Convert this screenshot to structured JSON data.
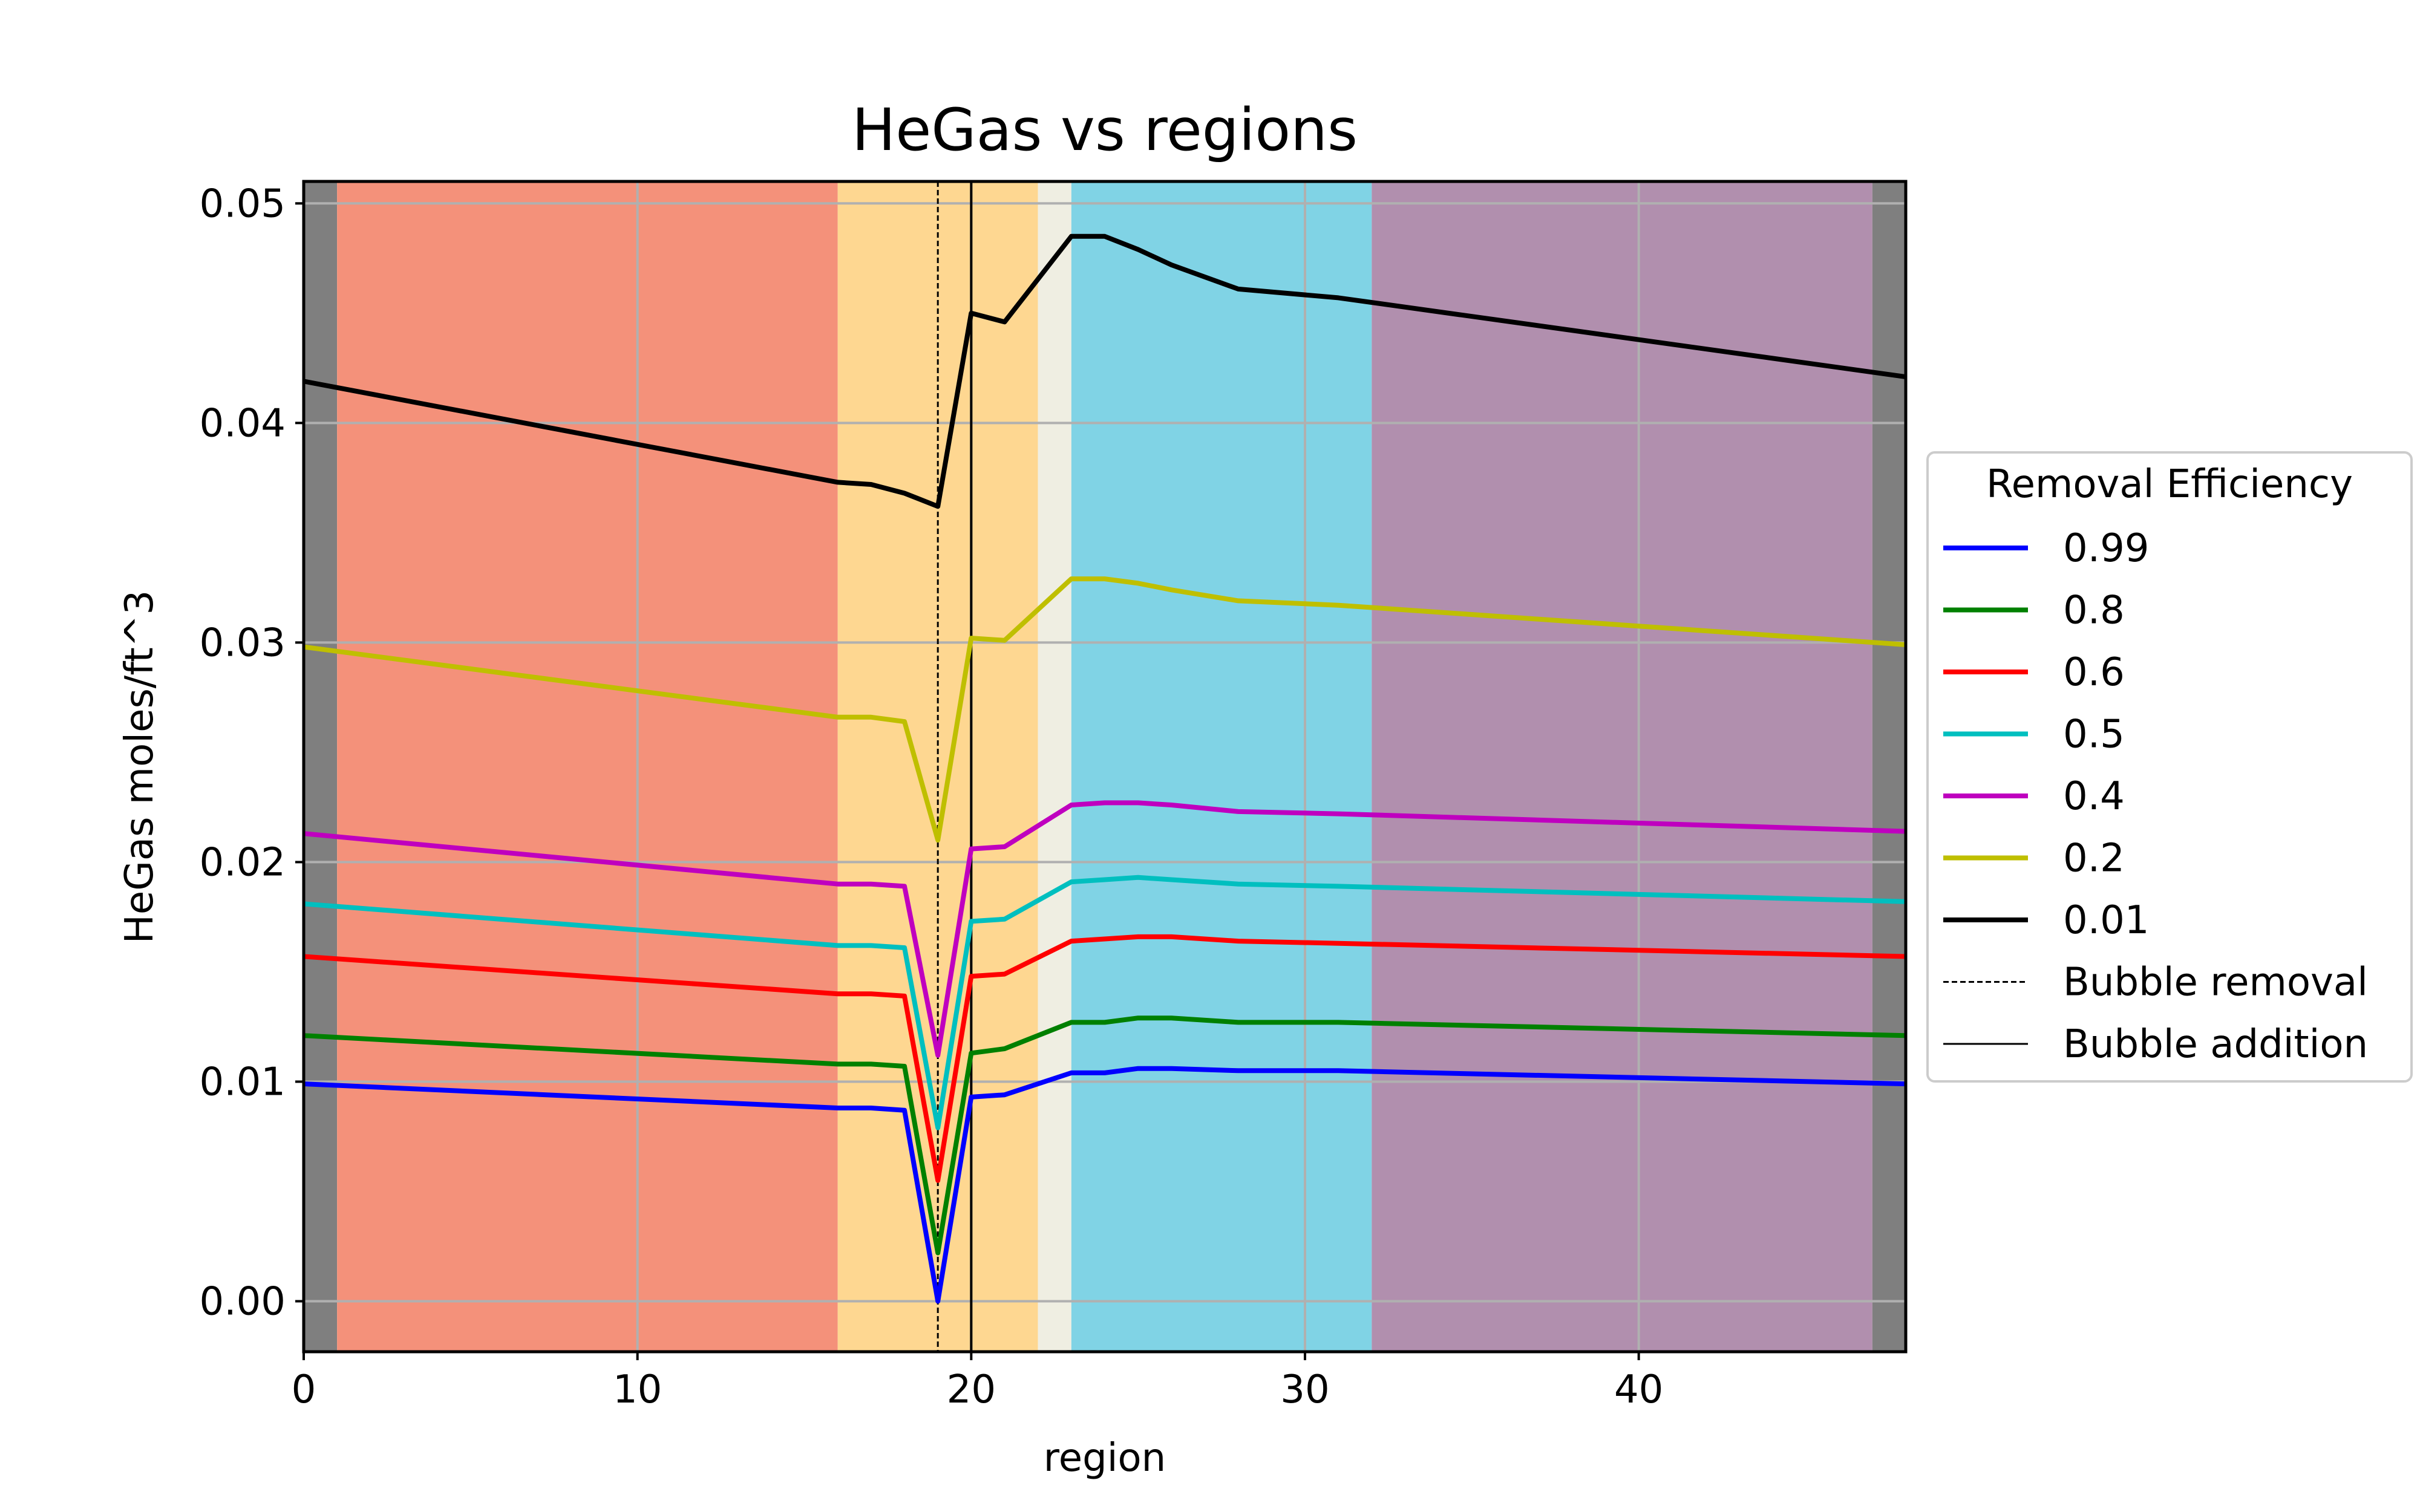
{
  "chart_data": {
    "type": "line",
    "title": "HeGas vs regions",
    "xlabel": "region",
    "ylabel": "HeGas moles/ft^3",
    "xlim": [
      0,
      48
    ],
    "ylim": [
      -0.0023,
      0.051
    ],
    "xticks": [
      0,
      10,
      20,
      30,
      40
    ],
    "xtick_labels": [
      "0",
      "10",
      "20",
      "30",
      "40"
    ],
    "yticks": [
      0.0,
      0.01,
      0.02,
      0.03,
      0.04,
      0.05
    ],
    "ytick_labels": [
      "0.00",
      "0.01",
      "0.02",
      "0.03",
      "0.04",
      "0.05"
    ],
    "grid": true,
    "legend": {
      "title": "Removal Efficiency",
      "placement": "center-right outside"
    },
    "bands": [
      {
        "x0": 0,
        "x1": 1,
        "color": "#7f7f7f"
      },
      {
        "x0": 1,
        "x1": 16,
        "color": "#f4917a"
      },
      {
        "x0": 16,
        "x1": 22,
        "color": "#fed791"
      },
      {
        "x0": 22,
        "x1": 23,
        "color": "#efeee2"
      },
      {
        "x0": 23,
        "x1": 32,
        "color": "#80d3e5"
      },
      {
        "x0": 32,
        "x1": 47,
        "color": "#b18fae"
      },
      {
        "x0": 47,
        "x1": 48,
        "color": "#7f7f7f"
      }
    ],
    "vlines": [
      {
        "x": 19,
        "label": "Bubble removal",
        "style": "dashed",
        "color": "#000000"
      },
      {
        "x": 20,
        "label": "Bubble addition",
        "style": "solid",
        "color": "#000000"
      }
    ],
    "x": [
      0,
      16,
      17,
      18,
      19,
      20,
      21,
      23,
      24,
      25,
      26,
      28,
      31,
      48
    ],
    "series": [
      {
        "name": "0.99",
        "color": "#0000ff",
        "values": [
          0.0099,
          0.0088,
          0.0088,
          0.0087,
          0.0,
          0.0093,
          0.0094,
          0.0104,
          0.0104,
          0.0106,
          0.0106,
          0.0105,
          0.0105,
          0.0099
        ]
      },
      {
        "name": "0.8",
        "color": "#008000",
        "values": [
          0.0121,
          0.0108,
          0.0108,
          0.0107,
          0.0022,
          0.0113,
          0.0115,
          0.0127,
          0.0127,
          0.0129,
          0.0129,
          0.0127,
          0.0127,
          0.0121
        ]
      },
      {
        "name": "0.6",
        "color": "#ff0000",
        "values": [
          0.0157,
          0.014,
          0.014,
          0.0139,
          0.0055,
          0.0148,
          0.0149,
          0.0164,
          0.0165,
          0.0166,
          0.0166,
          0.0164,
          0.0163,
          0.0157
        ]
      },
      {
        "name": "0.5",
        "color": "#00bfbf",
        "values": [
          0.0181,
          0.0162,
          0.0162,
          0.0161,
          0.0079,
          0.0173,
          0.0174,
          0.0191,
          0.0192,
          0.0193,
          0.0192,
          0.019,
          0.0189,
          0.0182
        ]
      },
      {
        "name": "0.4",
        "color": "#bf00bf",
        "values": [
          0.0213,
          0.019,
          0.019,
          0.0189,
          0.0112,
          0.0206,
          0.0207,
          0.0226,
          0.0227,
          0.0227,
          0.0226,
          0.0223,
          0.0222,
          0.0214
        ]
      },
      {
        "name": "0.2",
        "color": "#bfbf00",
        "values": [
          0.0298,
          0.0266,
          0.0266,
          0.0264,
          0.021,
          0.0302,
          0.0301,
          0.0329,
          0.0329,
          0.0327,
          0.0324,
          0.0319,
          0.0317,
          0.0299
        ]
      },
      {
        "name": "0.01",
        "color": "#000000",
        "values": [
          0.0419,
          0.0373,
          0.0372,
          0.0368,
          0.0362,
          0.045,
          0.0446,
          0.0485,
          0.0485,
          0.0479,
          0.0472,
          0.0461,
          0.0457,
          0.0421
        ]
      }
    ]
  }
}
